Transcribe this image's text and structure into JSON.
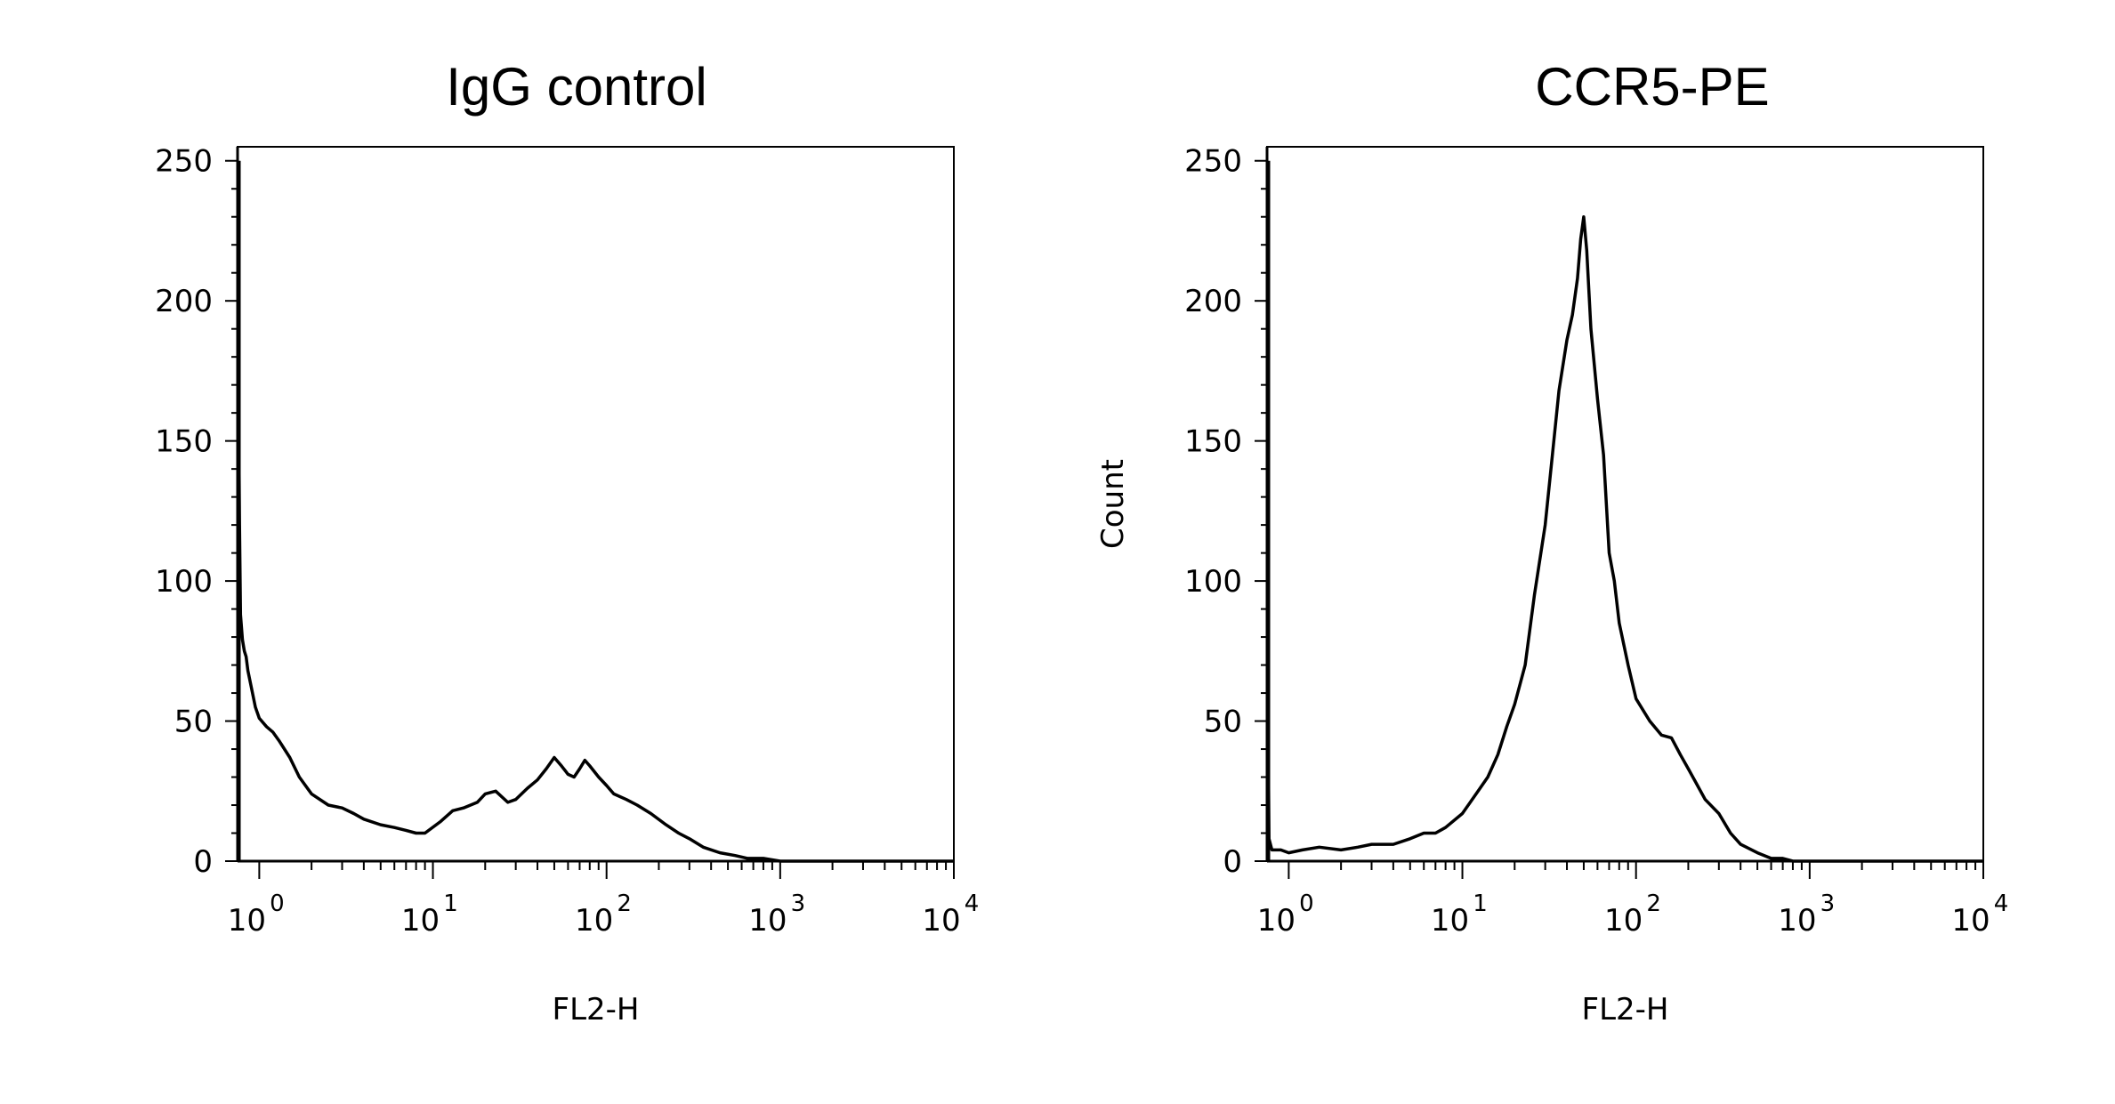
{
  "chart_data": [
    {
      "type": "line",
      "title": "IgG control",
      "xlabel": "FL2-H",
      "ylabel": "",
      "xscale": "log",
      "xlim": [
        0.75,
        10000
      ],
      "ylim": [
        0,
        255
      ],
      "yticks": [
        0,
        50,
        100,
        150,
        200,
        250
      ],
      "xticks": [
        {
          "base": "10",
          "exp": "0",
          "value": 1
        },
        {
          "base": "10",
          "exp": "1",
          "value": 10
        },
        {
          "base": "10",
          "exp": "2",
          "value": 100
        },
        {
          "base": "10",
          "exp": "3",
          "value": 1000
        },
        {
          "base": "10",
          "exp": "4",
          "value": 10000
        }
      ],
      "grid": false,
      "series": [
        {
          "x": [
            0.76,
            0.77,
            0.78,
            0.8,
            0.82,
            0.84,
            0.86,
            0.9,
            0.95,
            1.0,
            1.1,
            1.2,
            1.3,
            1.5,
            1.7,
            2.0,
            2.5,
            3.0,
            3.5,
            4.0,
            5.0,
            6.0,
            7.0,
            8.0,
            9.0,
            11,
            13,
            15,
            18,
            20,
            23,
            27,
            30,
            35,
            40,
            45,
            50,
            55,
            60,
            65,
            70,
            75,
            80,
            90,
            100,
            110,
            130,
            150,
            180,
            220,
            260,
            300,
            360,
            450,
            550,
            650,
            800,
            1000,
            1500,
            2000,
            5000,
            10000
          ],
          "values": [
            165,
            120,
            88,
            79,
            75,
            73,
            68,
            62,
            55,
            51,
            48,
            46,
            43,
            37,
            30,
            24,
            20,
            19,
            17,
            15,
            13,
            12,
            11,
            10,
            10,
            14,
            18,
            19,
            21,
            24,
            25,
            21,
            22,
            26,
            29,
            33,
            37,
            34,
            31,
            30,
            33,
            36,
            34,
            30,
            27,
            24,
            22,
            20,
            17,
            13,
            10,
            8,
            5,
            3,
            2,
            1,
            1,
            0,
            0,
            0,
            0,
            0
          ]
        }
      ]
    },
    {
      "type": "line",
      "title": "CCR5-PE",
      "xlabel": "FL2-H",
      "ylabel": "Count",
      "xscale": "log",
      "xlim": [
        0.75,
        10000
      ],
      "ylim": [
        0,
        255
      ],
      "yticks": [
        0,
        50,
        100,
        150,
        200,
        250
      ],
      "xticks": [
        {
          "base": "10",
          "exp": "0",
          "value": 1
        },
        {
          "base": "10",
          "exp": "1",
          "value": 10
        },
        {
          "base": "10",
          "exp": "2",
          "value": 100
        },
        {
          "base": "10",
          "exp": "3",
          "value": 1000
        },
        {
          "base": "10",
          "exp": "4",
          "value": 10000
        }
      ],
      "grid": false,
      "series": [
        {
          "x": [
            0.76,
            0.77,
            0.8,
            0.9,
            1.0,
            1.2,
            1.5,
            2.0,
            2.5,
            3.0,
            4.0,
            5.0,
            6.0,
            7.0,
            8.0,
            10,
            12,
            14,
            16,
            18,
            20,
            23,
            26,
            30,
            33,
            36,
            40,
            43,
            46,
            48,
            50,
            52,
            55,
            60,
            65,
            70,
            75,
            80,
            90,
            100,
            120,
            140,
            160,
            180,
            200,
            250,
            300,
            350,
            400,
            500,
            600,
            700,
            800,
            1000,
            1500,
            2000,
            5000,
            10000
          ],
          "values": [
            53,
            8,
            4,
            4,
            3,
            4,
            5,
            4,
            5,
            6,
            6,
            8,
            10,
            10,
            12,
            17,
            24,
            30,
            38,
            48,
            56,
            70,
            95,
            120,
            145,
            168,
            186,
            195,
            208,
            222,
            230,
            218,
            190,
            165,
            145,
            110,
            100,
            85,
            70,
            58,
            50,
            45,
            44,
            38,
            33,
            22,
            17,
            10,
            6,
            3,
            1,
            1,
            0,
            0,
            0,
            0,
            0,
            0
          ]
        }
      ]
    }
  ]
}
